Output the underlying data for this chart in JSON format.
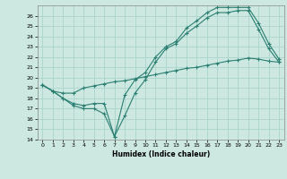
{
  "title": "",
  "xlabel": "Humidex (Indice chaleur)",
  "bg_color": "#cce8e0",
  "line_color": "#2a7f72",
  "grid_color": "#b0d8d0",
  "xlim": [
    -0.5,
    23.5
  ],
  "ylim": [
    14,
    27
  ],
  "xticks": [
    0,
    1,
    2,
    3,
    4,
    5,
    6,
    7,
    8,
    9,
    10,
    11,
    12,
    13,
    14,
    15,
    16,
    17,
    18,
    19,
    20,
    21,
    22,
    23
  ],
  "yticks": [
    14,
    15,
    16,
    17,
    18,
    19,
    20,
    21,
    22,
    23,
    24,
    25,
    26
  ],
  "line1_x": [
    0,
    1,
    2,
    3,
    4,
    5,
    6,
    7,
    8,
    9,
    10,
    11,
    12,
    13,
    14,
    15,
    16,
    17,
    18,
    19,
    20,
    21,
    22,
    23
  ],
  "line1_y": [
    19.3,
    18.7,
    18.0,
    17.3,
    17.0,
    17.0,
    16.5,
    14.3,
    16.3,
    18.5,
    19.8,
    21.5,
    22.8,
    23.3,
    24.3,
    25.0,
    25.8,
    26.3,
    26.3,
    26.5,
    26.5,
    24.7,
    22.8,
    21.5
  ],
  "line2_x": [
    0,
    1,
    2,
    3,
    4,
    5,
    6,
    7,
    8,
    9,
    10,
    11,
    12,
    13,
    14,
    15,
    16,
    17,
    18,
    19,
    20,
    21,
    22,
    23
  ],
  "line2_y": [
    19.3,
    18.7,
    18.0,
    17.5,
    17.3,
    17.5,
    17.5,
    14.3,
    18.3,
    19.8,
    20.5,
    22.0,
    23.0,
    23.5,
    24.8,
    25.5,
    26.3,
    26.8,
    26.8,
    26.8,
    26.8,
    25.3,
    23.3,
    21.8
  ],
  "line3_x": [
    0,
    1,
    2,
    3,
    4,
    5,
    6,
    7,
    8,
    9,
    10,
    11,
    12,
    13,
    14,
    15,
    16,
    17,
    18,
    19,
    20,
    21,
    22,
    23
  ],
  "line3_y": [
    19.3,
    18.7,
    18.5,
    18.5,
    19.0,
    19.2,
    19.4,
    19.6,
    19.7,
    19.9,
    20.1,
    20.3,
    20.5,
    20.7,
    20.9,
    21.0,
    21.2,
    21.4,
    21.6,
    21.7,
    21.9,
    21.8,
    21.6,
    21.5
  ]
}
